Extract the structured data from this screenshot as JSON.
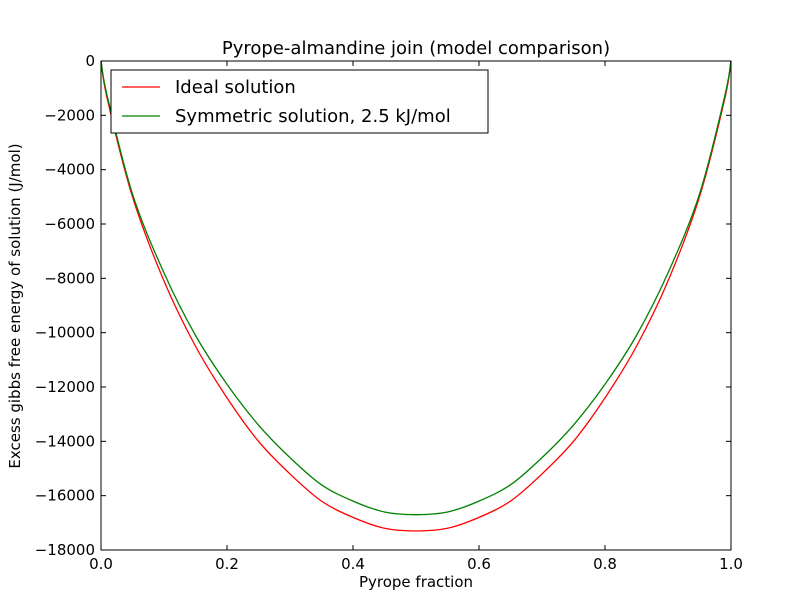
{
  "chart_data": {
    "type": "line",
    "title": "Pyrope-almandine join (model comparison)",
    "xlabel": "Pyrope fraction",
    "ylabel": "Excess gibbs free energy of solution (J/mol)",
    "xlim": [
      0.0,
      1.0
    ],
    "ylim": [
      -18000,
      0
    ],
    "x_ticks": [
      "0.0",
      "0.2",
      "0.4",
      "0.6",
      "0.8",
      "1.0"
    ],
    "y_ticks": [
      "0",
      "−2000",
      "−4000",
      "−6000",
      "−8000",
      "−10000",
      "−12000",
      "−14000",
      "−16000",
      "−18000"
    ],
    "grid": false,
    "legend_position": "top-left",
    "series": [
      {
        "name": "Ideal solution",
        "color": "#ff0000",
        "x": [
          0.0,
          0.01,
          0.05,
          0.1,
          0.15,
          0.2,
          0.25,
          0.3,
          0.35,
          0.4,
          0.45,
          0.5,
          0.55,
          0.6,
          0.65,
          0.7,
          0.75,
          0.8,
          0.85,
          0.9,
          0.95,
          0.99,
          1.0
        ],
        "y": [
          0,
          -1400,
          -5000,
          -8100,
          -10500,
          -12400,
          -14000,
          -15200,
          -16200,
          -16800,
          -17200,
          -17300,
          -17200,
          -16800,
          -16200,
          -15200,
          -14000,
          -12400,
          -10500,
          -8100,
          -5000,
          -1400,
          0
        ]
      },
      {
        "name": "Symmetric solution, 2.5 kJ/mol",
        "color": "#008000",
        "x": [
          0.0,
          0.01,
          0.05,
          0.1,
          0.15,
          0.2,
          0.25,
          0.3,
          0.35,
          0.4,
          0.45,
          0.5,
          0.55,
          0.6,
          0.65,
          0.7,
          0.75,
          0.8,
          0.85,
          0.9,
          0.95,
          0.99,
          1.0
        ],
        "y": [
          0,
          -1300,
          -4900,
          -7800,
          -10100,
          -11900,
          -13400,
          -14600,
          -15600,
          -16200,
          -16600,
          -16700,
          -16600,
          -16200,
          -15600,
          -14600,
          -13400,
          -11900,
          -10100,
          -7800,
          -4900,
          -1300,
          0
        ]
      }
    ]
  }
}
